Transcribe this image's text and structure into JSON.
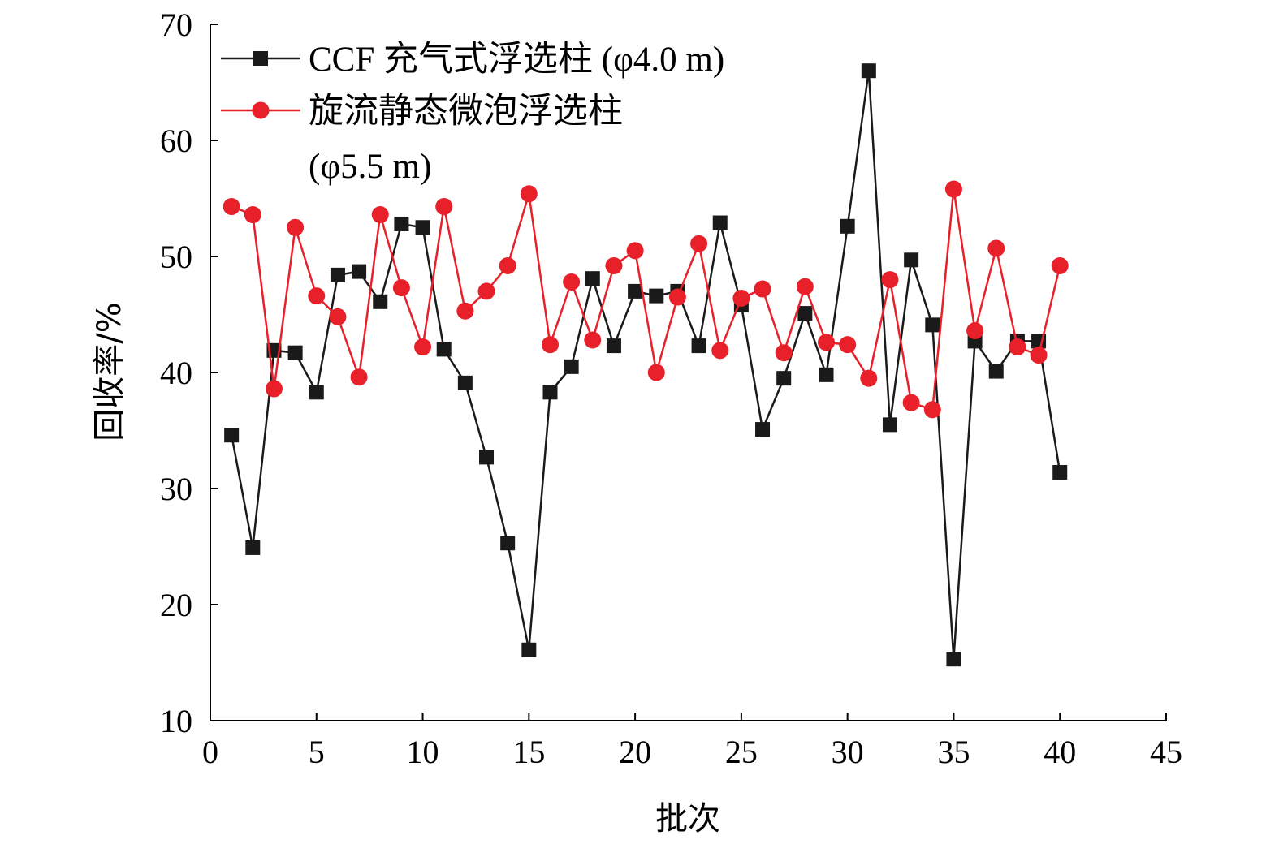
{
  "chart_data": {
    "type": "line",
    "xlabel": "批次",
    "ylabel": "回收率/%",
    "xlim": [
      0,
      45
    ],
    "ylim": [
      10,
      70
    ],
    "xticks": [
      0,
      5,
      10,
      15,
      20,
      25,
      30,
      35,
      40,
      45
    ],
    "yticks": [
      10,
      20,
      30,
      40,
      50,
      60,
      70
    ],
    "x": [
      1,
      2,
      3,
      4,
      5,
      6,
      7,
      8,
      9,
      10,
      11,
      12,
      13,
      14,
      15,
      16,
      17,
      18,
      19,
      20,
      21,
      22,
      23,
      24,
      25,
      26,
      27,
      28,
      29,
      30,
      31,
      32,
      33,
      34,
      35,
      36,
      37,
      38,
      39,
      40
    ],
    "legend_position": "top-left",
    "series": [
      {
        "name": "CCF 充气式浮选柱 (φ4.0 m)",
        "legend_lines": [
          "CCF 充气式浮选柱 (φ4.0  m)"
        ],
        "color": "#1a1a1a",
        "marker": "square",
        "values": [
          34.6,
          24.9,
          41.9,
          41.7,
          38.3,
          48.4,
          48.7,
          46.1,
          52.8,
          52.5,
          42.0,
          39.1,
          32.7,
          25.3,
          16.1,
          38.3,
          40.5,
          48.1,
          42.3,
          47.0,
          46.6,
          47.0,
          42.3,
          52.9,
          45.8,
          35.1,
          39.5,
          45.1,
          39.8,
          52.6,
          66.0,
          35.5,
          49.7,
          44.1,
          15.3,
          42.7,
          40.1,
          42.7,
          42.7,
          31.4
        ]
      },
      {
        "name": "旋流静态微泡浮选柱 (φ5.5 m)",
        "legend_lines": [
          "旋流静态微泡浮选柱",
          "(φ5.5 m)"
        ],
        "color": "#e8202a",
        "marker": "circle",
        "values": [
          54.3,
          53.6,
          38.6,
          52.5,
          46.6,
          44.8,
          39.6,
          53.6,
          47.3,
          42.2,
          54.3,
          45.3,
          47.0,
          49.2,
          55.4,
          42.4,
          47.8,
          42.8,
          49.2,
          50.5,
          40.0,
          46.5,
          51.1,
          41.9,
          46.4,
          47.2,
          41.7,
          47.4,
          42.6,
          42.4,
          39.5,
          48.0,
          37.4,
          36.8,
          55.8,
          43.6,
          50.7,
          42.2,
          41.5,
          49.2
        ]
      }
    ]
  }
}
